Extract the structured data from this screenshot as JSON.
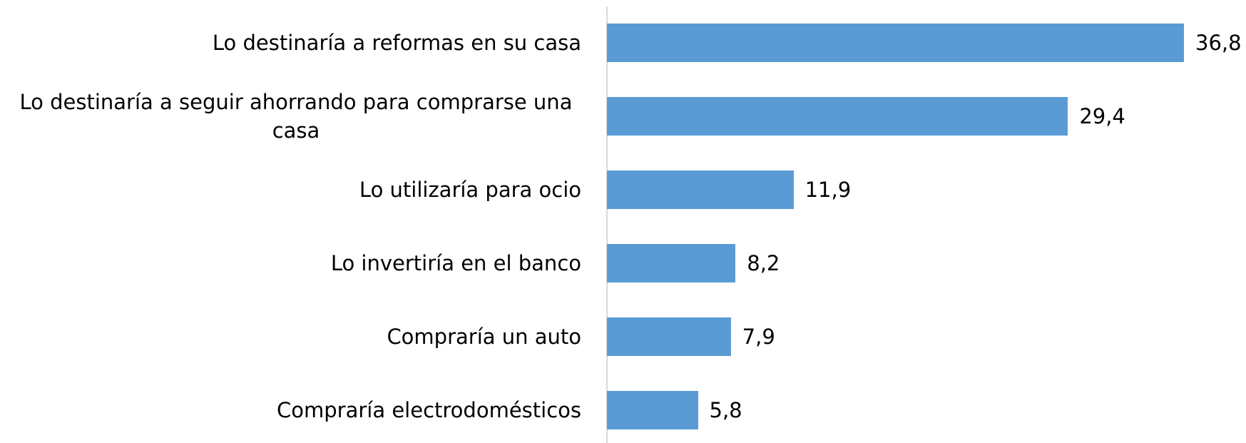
{
  "chart_data": {
    "type": "barh",
    "categories": [
      "Lo destinaría a reformas en su casa",
      "Lo destinaría a seguir ahorrando para comprarse una casa",
      "Lo utilizaría para ocio",
      "Lo invertiría en el banco",
      "Compraría un auto",
      "Compraría electrodomésticos"
    ],
    "values": [
      36.8,
      29.4,
      11.9,
      8.2,
      7.9,
      5.8
    ],
    "value_labels": [
      "36,8",
      "29,4",
      "11,9",
      "8,2",
      "7,9",
      "5,8"
    ],
    "color": "#5b9bd5"
  }
}
